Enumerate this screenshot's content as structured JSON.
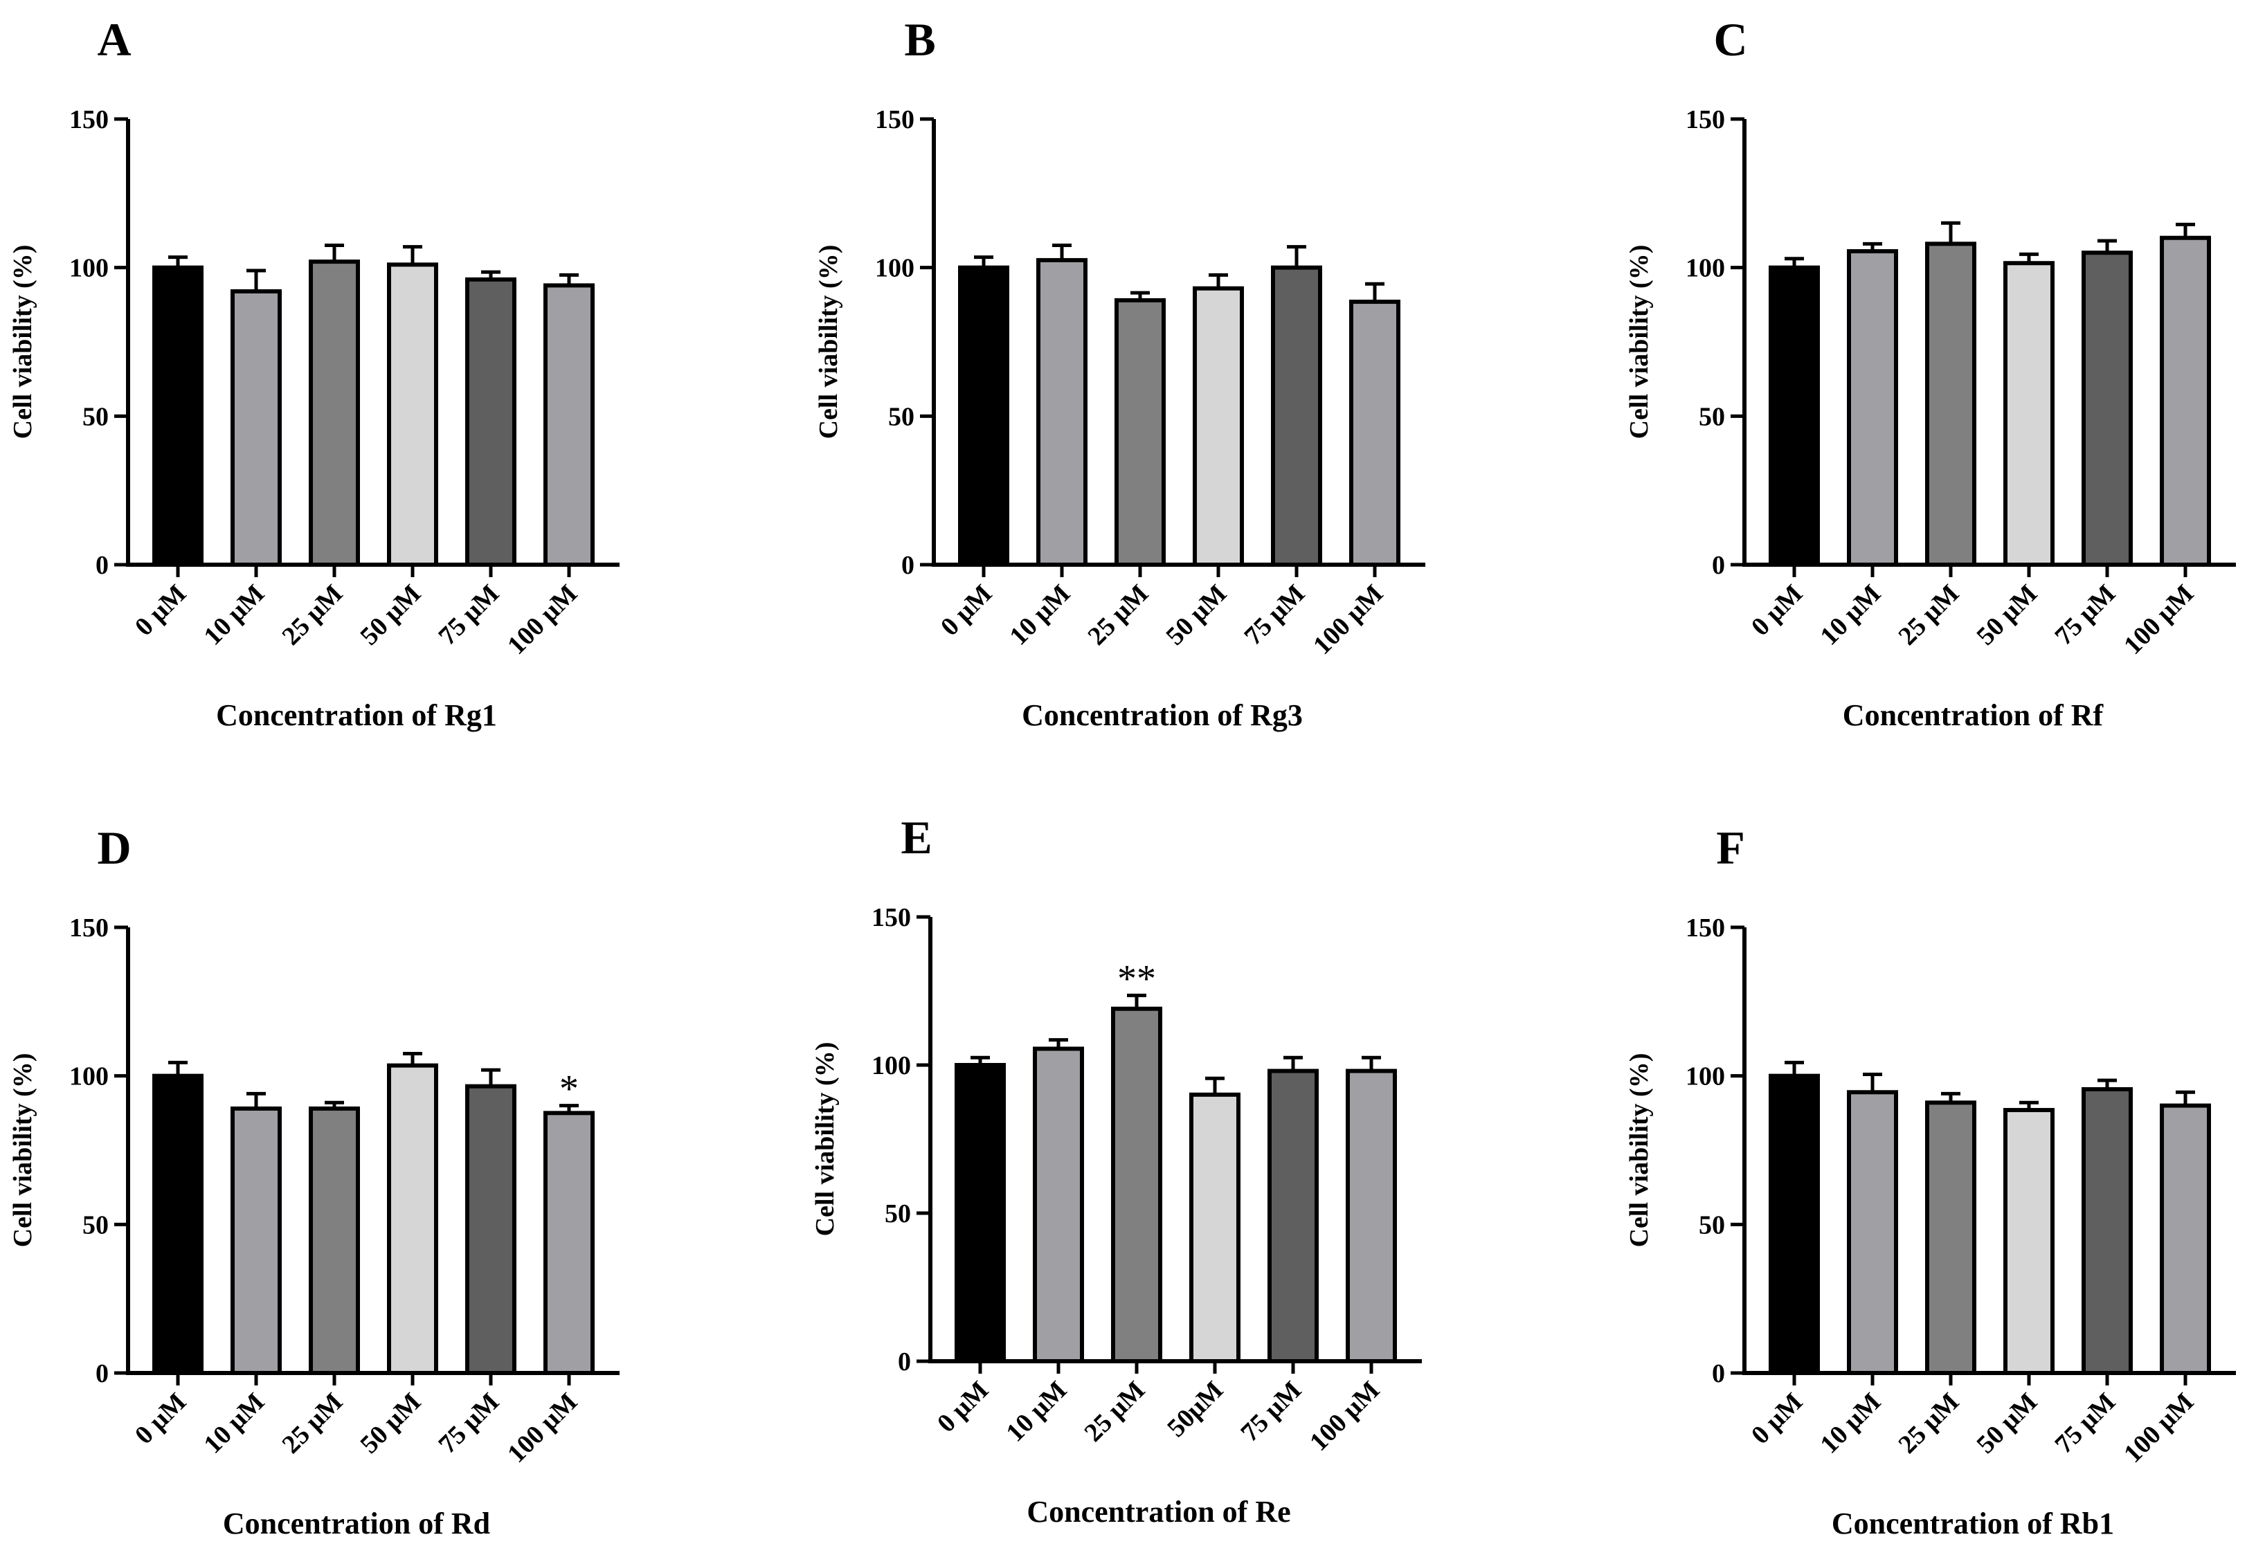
{
  "chart_data": [
    {
      "panel": "A",
      "type": "bar",
      "categories": [
        "0 μM",
        "10 μM",
        "25 μM",
        "50 μM",
        "75 μM",
        "100 μM"
      ],
      "values": [
        100,
        92,
        102,
        101,
        96,
        94
      ],
      "errors": [
        3.5,
        7,
        5.5,
        6,
        2.5,
        3.5
      ],
      "significance": [
        "",
        "",
        "",
        "",
        "",
        ""
      ],
      "xlabel": "Concentration of Rg1",
      "ylabel": "Cell viability (%)",
      "ylim": [
        0,
        150
      ],
      "yticks": [
        0,
        50,
        100,
        150
      ]
    },
    {
      "panel": "B",
      "type": "bar",
      "categories": [
        "0 μM",
        "10 μM",
        "25 μM",
        "50 μM",
        "75 μM",
        "100 μM"
      ],
      "values": [
        100,
        102.5,
        89,
        93,
        100,
        88.5
      ],
      "errors": [
        3.5,
        5,
        2.5,
        4.5,
        7,
        6
      ],
      "significance": [
        "",
        "",
        "",
        "",
        "",
        ""
      ],
      "xlabel": "Concentration of Rg3",
      "ylabel": "Cell viability (%)",
      "ylim": [
        0,
        150
      ],
      "yticks": [
        0,
        50,
        100,
        150
      ]
    },
    {
      "panel": "C",
      "type": "bar",
      "categories": [
        "0 μM",
        "10 μM",
        "25 μM",
        "50 μM",
        "75 μM",
        "100 μM"
      ],
      "values": [
        100,
        105.5,
        108,
        101.5,
        105,
        110
      ],
      "errors": [
        3,
        2.5,
        7,
        3,
        4,
        4.5
      ],
      "significance": [
        "",
        "",
        "",
        "",
        "",
        ""
      ],
      "xlabel": "Concentration of Rf",
      "ylabel": "Cell viability (%)",
      "ylim": [
        0,
        150
      ],
      "yticks": [
        0,
        50,
        100,
        150
      ]
    },
    {
      "panel": "D",
      "type": "bar",
      "categories": [
        "0 μM",
        "10 μM",
        "25 μM",
        "50 μM",
        "75 μM",
        "100 μM"
      ],
      "values": [
        100,
        89,
        89,
        103.5,
        96.5,
        87.5
      ],
      "errors": [
        4.5,
        5,
        2,
        4,
        5.5,
        2.5
      ],
      "significance": [
        "",
        "",
        "",
        "",
        "",
        "*"
      ],
      "xlabel": "Concentration of Rd",
      "ylabel": "Cell viability (%)",
      "ylim": [
        0,
        150
      ],
      "yticks": [
        0,
        50,
        100,
        150
      ]
    },
    {
      "panel": "E",
      "type": "bar",
      "categories": [
        "0 μM",
        "10 μM",
        "25 μM",
        "50μM",
        "75 μM",
        "100 μM"
      ],
      "values": [
        100,
        105.5,
        119,
        90,
        98,
        98
      ],
      "errors": [
        2.5,
        3,
        4.5,
        5.5,
        4.5,
        4.5
      ],
      "significance": [
        "",
        "",
        "**",
        "",
        "",
        ""
      ],
      "xlabel": "Concentration of Re",
      "ylabel": "Cell viability (%)",
      "ylim": [
        0,
        150
      ],
      "yticks": [
        0,
        50,
        100,
        150
      ]
    },
    {
      "panel": "F",
      "type": "bar",
      "categories": [
        "0 μM",
        "10 μM",
        "25 μM",
        "50 μM",
        "75 μM",
        "100 μM"
      ],
      "values": [
        100,
        94.5,
        91,
        88.5,
        95.5,
        90
      ],
      "errors": [
        4.5,
        6,
        3,
        2.5,
        3,
        4.5
      ],
      "significance": [
        "",
        "",
        "",
        "",
        "",
        ""
      ],
      "xlabel": "Concentration of Rb1",
      "ylabel": "Cell viability (%)",
      "ylim": [
        0,
        150
      ],
      "yticks": [
        0,
        50,
        100,
        150
      ]
    }
  ],
  "bar_colors": [
    "#000000",
    "#a0a0a4",
    "#808080",
    "#d6d6d6",
    "#5f5f5f",
    "#a0a0a4"
  ]
}
